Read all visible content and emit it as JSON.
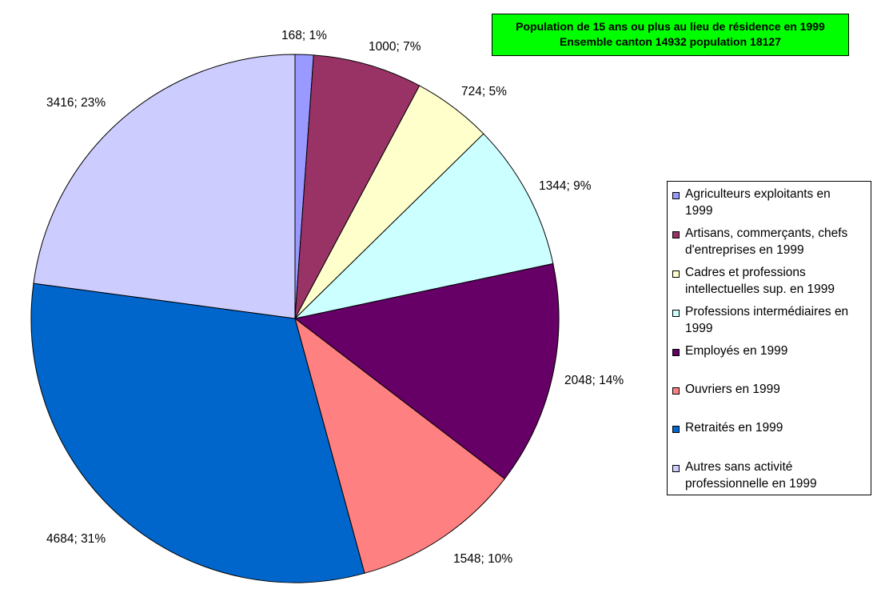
{
  "title": {
    "line1": "Population de 15 ans ou plus au lieu de résidence en 1999",
    "line2": "Ensemble canton 14932 population 18127"
  },
  "chart_data": {
    "type": "pie",
    "title": "Population de 15 ans ou plus au lieu de résidence en 1999 — Ensemble canton 14932 population 18127",
    "legend_position": "right",
    "slices": [
      {
        "name": "Agriculteurs exploitants en 1999",
        "legend_text": "Agriculteurs exploitants en\n1999",
        "value": 168,
        "percent": "1%",
        "label": "168; 1%",
        "color": "#9999ff"
      },
      {
        "name": "Artisans, commerçants, chefs d'entreprises en 1999",
        "legend_text": "Artisans, commerçants, chefs\nd'entreprises en 1999",
        "value": 1000,
        "percent": "7%",
        "label": "1000; 7%",
        "color": "#993366"
      },
      {
        "name": "Cadres et professions intellectuelles sup. en 1999",
        "legend_text": "Cadres et professions\nintellectuelles sup. en 1999",
        "value": 724,
        "percent": "5%",
        "label": "724; 5%",
        "color": "#ffffcc"
      },
      {
        "name": "Professions intermédiaires en 1999",
        "legend_text": "Professions intermédiaires en\n1999",
        "value": 1344,
        "percent": "9%",
        "label": "1344; 9%",
        "color": "#ccffff"
      },
      {
        "name": "Employés en 1999",
        "legend_text": "Employés en 1999",
        "value": 2048,
        "percent": "14%",
        "label": "2048; 14%",
        "color": "#660066"
      },
      {
        "name": "Ouvriers en 1999",
        "legend_text": "Ouvriers en 1999",
        "value": 1548,
        "percent": "10%",
        "label": "1548; 10%",
        "color": "#ff8080"
      },
      {
        "name": "Retraités en 1999",
        "legend_text": "Retraités en 1999",
        "value": 4684,
        "percent": "31%",
        "label": "4684; 31%",
        "color": "#0066cc"
      },
      {
        "name": "Autres sans activité professionnelle en 1999",
        "legend_text": "Autres sans activité\nprofessionnelle en 1999",
        "value": 3416,
        "percent": "23%",
        "label": "3416; 23%",
        "color": "#ccccff"
      }
    ]
  }
}
